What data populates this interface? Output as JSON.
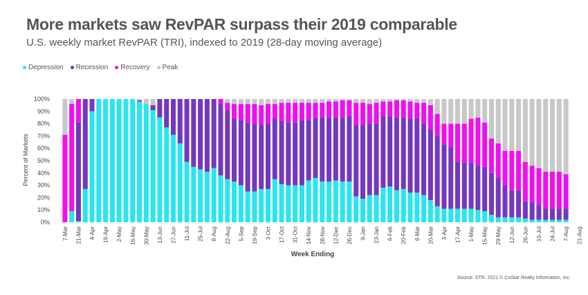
{
  "title": "More markets saw RevPAR surpass their 2019 comparable",
  "subtitle": "U.S. weekly market RevPAR (TRI), indexed to 2019 (28-day moving average)",
  "source": "Source: STR. 2021 © CoStar Realty Information, Inc.",
  "chart_data": {
    "type": "bar",
    "stacked": true,
    "xlabel": "Week Ending",
    "ylabel": "Percent of Markets",
    "ylim": [
      0,
      100
    ],
    "yticks": [
      "0%",
      "10%",
      "20%",
      "30%",
      "40%",
      "50%",
      "60%",
      "70%",
      "80%",
      "90%",
      "100%"
    ],
    "legend_position": "top-left",
    "grid": false,
    "xtick_labels": [
      "7-Mar",
      "21-Mar",
      "4-Apr",
      "18-Apr",
      "2-May",
      "16-May",
      "30-May",
      "13-Jun",
      "27-Jun",
      "11-Jul",
      "25-Jul",
      "8-Aug",
      "22-Aug",
      "5-Sep",
      "19-Sep",
      "3-Oct",
      "17-Oct",
      "31-Oct",
      "14-Nov",
      "28-Nov",
      "12-Dec",
      "26-Dec",
      "9-Jan",
      "23-Jan",
      "6-Feb",
      "20-Feb",
      "6-Mar",
      "20-Mar",
      "3-Apr",
      "17-Apr",
      "1-May",
      "15-May",
      "29-May",
      "12-Jun",
      "26-Jun",
      "10-Jul",
      "24-Jul",
      "7-Aug",
      "21-Aug"
    ],
    "series": [
      {
        "name": "Depression",
        "color": "#29E6EC",
        "values": [
          0,
          9,
          1,
          27,
          90,
          100,
          100,
          100,
          100,
          100,
          100,
          98,
          96,
          91,
          85,
          77,
          71,
          64,
          49,
          45,
          43,
          41,
          44,
          38,
          35,
          33,
          30,
          25,
          25,
          27,
          27,
          35,
          31,
          30,
          30,
          30,
          34,
          36,
          33,
          33,
          34,
          33,
          33,
          21,
          19,
          22,
          22,
          28,
          29,
          26,
          27,
          24,
          24,
          22,
          18,
          13,
          11,
          11,
          11,
          11,
          11,
          10,
          9,
          6,
          4,
          4,
          4,
          4,
          3,
          2,
          2,
          2,
          2,
          2,
          2
        ]
      },
      {
        "name": "Recession",
        "color": "#7438BE",
        "values": [
          0,
          0,
          80,
          73,
          10,
          0,
          0,
          0,
          0,
          0,
          0,
          1,
          0,
          4,
          15,
          23,
          29,
          36,
          51,
          55,
          57,
          59,
          56,
          58,
          56,
          51,
          53,
          56,
          55,
          52,
          53,
          49,
          51,
          51,
          51,
          53,
          49,
          49,
          52,
          52,
          51,
          52,
          53,
          58,
          60,
          58,
          58,
          58,
          57,
          59,
          58,
          60,
          60,
          58,
          57,
          57,
          52,
          50,
          38,
          37,
          37,
          36,
          36,
          34,
          32,
          26,
          22,
          22,
          14,
          14,
          12,
          9,
          9,
          9,
          9
        ]
      },
      {
        "name": "Recovery",
        "color": "#EF10EF",
        "values": [
          71,
          87,
          19,
          0,
          0,
          0,
          0,
          0,
          0,
          0,
          0,
          0,
          0,
          0,
          0,
          0,
          0,
          0,
          0,
          0,
          0,
          0,
          0,
          4,
          6,
          12,
          13,
          15,
          16,
          16,
          16,
          12,
          15,
          16,
          16,
          14,
          14,
          12,
          12,
          13,
          13,
          14,
          13,
          18,
          18,
          16,
          17,
          12,
          12,
          14,
          14,
          14,
          13,
          17,
          20,
          18,
          17,
          19,
          31,
          32,
          36,
          39,
          36,
          28,
          28,
          28,
          32,
          32,
          32,
          30,
          30,
          30,
          30,
          30,
          28
        ]
      },
      {
        "name": "Peak",
        "color": "#C8C8C8",
        "values": [
          29,
          4,
          0,
          0,
          0,
          0,
          0,
          0,
          0,
          0,
          0,
          1,
          4,
          5,
          0,
          0,
          0,
          0,
          0,
          0,
          0,
          0,
          0,
          0,
          3,
          4,
          4,
          4,
          4,
          5,
          4,
          4,
          3,
          3,
          3,
          3,
          3,
          3,
          3,
          2,
          2,
          1,
          1,
          3,
          3,
          4,
          3,
          2,
          2,
          1,
          1,
          2,
          3,
          3,
          5,
          12,
          20,
          20,
          20,
          20,
          16,
          15,
          19,
          32,
          36,
          42,
          42,
          42,
          51,
          54,
          56,
          59,
          59,
          59,
          61
        ]
      }
    ]
  }
}
